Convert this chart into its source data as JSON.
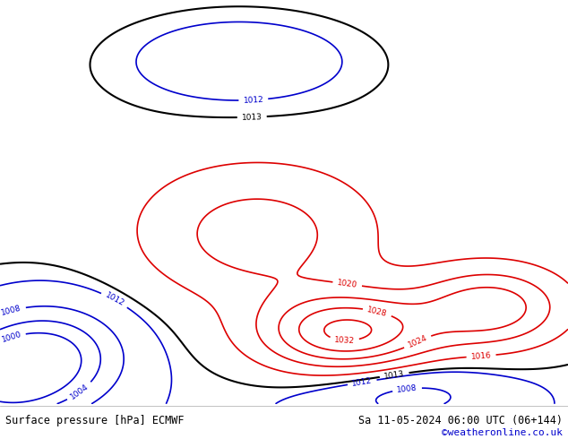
{
  "title_left": "Surface pressure [hPa] ECMWF",
  "title_right": "Sa 11-05-2024 06:00 UTC (06+144)",
  "copyright": "©weatheronline.co.uk",
  "background_color": "#c8d8e8",
  "land_color": "#a0d070",
  "border_color": "#808080",
  "footer_bg": "#ffffff",
  "footer_text_color": "#000000",
  "copyright_color": "#0000cc",
  "contour_red_color": "#dd0000",
  "contour_blue_color": "#0000cc",
  "contour_black_color": "#000000",
  "lon_min": 90,
  "lon_max": 185,
  "lat_min": -62,
  "lat_max": 22,
  "fig_width": 6.34,
  "fig_height": 4.9,
  "dpi": 100,
  "red_levels": [
    1016,
    1020,
    1024,
    1028,
    1032
  ],
  "blue_levels": [
    1000,
    1004,
    1008,
    1012
  ],
  "black_levels": [
    1013
  ]
}
